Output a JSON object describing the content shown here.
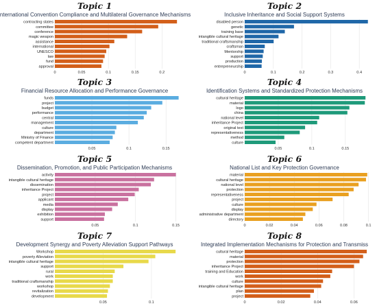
{
  "chart_data": [
    {
      "type": "bar",
      "title": "Topic 1",
      "subtitle": "International Convention Compliance and Multilateral Governance Mechanisms",
      "color": "#d35f1a",
      "categories": [
        "contracting states",
        "committee",
        "conference",
        "magic weapon",
        "assistance",
        "international",
        "UNESCO",
        "law",
        "fund",
        "approval"
      ],
      "values": [
        0.228,
        0.193,
        0.163,
        0.135,
        0.111,
        0.102,
        0.096,
        0.093,
        0.09,
        0.087
      ],
      "xlim": [
        0,
        0.238
      ],
      "xticks": [
        "0",
        "0.05",
        "0.1",
        "0.15",
        "0.2"
      ],
      "xtick_values": [
        0,
        0.05,
        0.1,
        0.15,
        0.2
      ]
    },
    {
      "type": "bar",
      "title": "Topic 2",
      "subtitle": "Inclusive Inheritance and Social Support Systems",
      "color": "#1f67a8",
      "categories": [
        "disabled person",
        "genetic",
        "training base",
        "intangible cultural heritage",
        "traditional craftsmanship",
        "craftsman",
        "Mentorship",
        "support",
        "production",
        "entrepreneurship"
      ],
      "values": [
        0.43,
        0.172,
        0.14,
        0.118,
        0.101,
        0.07,
        0.066,
        0.063,
        0.06,
        0.059
      ],
      "xlim": [
        0,
        0.445
      ],
      "xticks": [
        "0",
        "0.1",
        "0.2",
        "0.3",
        "0.4"
      ],
      "xtick_values": [
        0,
        0.1,
        0.2,
        0.3,
        0.4
      ]
    },
    {
      "type": "bar",
      "title": "Topic 3",
      "subtitle": "Financial Resource Allocation and Performance Governance",
      "color": "#5aace0",
      "categories": [
        "funds",
        "project",
        "budget",
        "performance",
        "central",
        "management",
        "culture",
        "department",
        "Ministry of Finance",
        "competent department"
      ],
      "values": [
        0.167,
        0.145,
        0.13,
        0.124,
        0.12,
        0.112,
        0.083,
        0.081,
        0.078,
        0.074
      ],
      "xlim": [
        0,
        0.172
      ],
      "xticks": [
        "0.05",
        "0.1",
        "0.15"
      ],
      "xtick_values": [
        0.05,
        0.1,
        0.15
      ]
    },
    {
      "type": "bar",
      "title": "Topic 4",
      "subtitle": "Identification Systems and Standardized Protection Mechanisms",
      "color": "#1e9a7a",
      "categories": [
        "cultural heritage",
        "material",
        "logo",
        "china",
        "national level",
        "inheritance Project",
        "original text",
        "representativeness",
        "method",
        "culture"
      ],
      "values": [
        0.18,
        0.179,
        0.156,
        0.153,
        0.111,
        0.108,
        0.09,
        0.082,
        0.059,
        0.046
      ],
      "xlim": [
        0,
        0.19
      ],
      "xticks": [
        "0.05",
        "0.1",
        "0.15"
      ],
      "xtick_values": [
        0.05,
        0.1,
        0.15
      ]
    },
    {
      "type": "bar",
      "title": "Topic 5",
      "subtitle": "Dissemination, Promotion, and Public Participation Mechanisms",
      "color": "#c9719f",
      "categories": [
        "activity",
        "intangible cultural heritage",
        "dissemination",
        "inheritance Project",
        "project",
        "applicant",
        "media",
        "display",
        "exhibition",
        "support"
      ],
      "values": [
        0.15,
        0.123,
        0.119,
        0.104,
        0.099,
        0.091,
        0.078,
        0.071,
        0.062,
        0.061
      ],
      "xlim": [
        0,
        0.158
      ],
      "xticks": [
        "0.05",
        "0.1",
        "0.15"
      ],
      "xtick_values": [
        0.05,
        0.1,
        0.15
      ]
    },
    {
      "type": "bar",
      "title": "Topic 6",
      "subtitle": "National List and Key Protection Governance",
      "color": "#e9a020",
      "categories": [
        "material",
        "cultural heritage",
        "national level",
        "protection",
        "representativeness",
        "project",
        "culture",
        "display",
        "administrative department",
        "directory"
      ],
      "values": [
        0.099,
        0.098,
        0.092,
        0.088,
        0.084,
        0.071,
        0.058,
        0.055,
        0.049,
        0.047
      ],
      "xlim": [
        0,
        0.103
      ],
      "xticks": [
        "0",
        "0.02",
        "0.04",
        "0.06",
        "0.08",
        "0.1"
      ],
      "xtick_values": [
        0,
        0.02,
        0.04,
        0.06,
        0.08,
        0.1
      ]
    },
    {
      "type": "bar",
      "title": "Topic 7",
      "subtitle": "Development Synergy and Poverty Alleviation Support Pathways",
      "color": "#e8d94a",
      "categories": [
        "Workshop",
        "poverty Alleviation",
        "intangible cultural heritage",
        "support",
        "rural",
        "work",
        "traditional craftsmanship",
        "workshop",
        "revitalization",
        "development"
      ],
      "values": [
        0.125,
        0.104,
        0.097,
        0.071,
        0.062,
        0.06,
        0.06,
        0.057,
        0.055,
        0.054
      ],
      "xlim": [
        0,
        0.132
      ],
      "xticks": [
        "0.05",
        "0.1"
      ],
      "xtick_values": [
        0.05,
        0.1
      ]
    },
    {
      "type": "bar",
      "title": "Topic 8",
      "subtitle": "Integrated Implementation Mechanisms for Protection and Transmiss",
      "color": "#d35f1a",
      "categories": [
        "cultural heritage",
        "material",
        "protection",
        "inheritance Project",
        "training and Education",
        "work",
        "culture",
        "intangible cultural heritage",
        "plan",
        "project"
      ],
      "values": [
        0.067,
        0.065,
        0.063,
        0.06,
        0.048,
        0.047,
        0.043,
        0.042,
        0.038,
        0.036
      ],
      "xlim": [
        0,
        0.07
      ],
      "xticks": [
        "0",
        "0.02",
        "0.04",
        "0.06"
      ],
      "xtick_values": [
        0,
        0.02,
        0.04,
        0.06
      ]
    }
  ]
}
